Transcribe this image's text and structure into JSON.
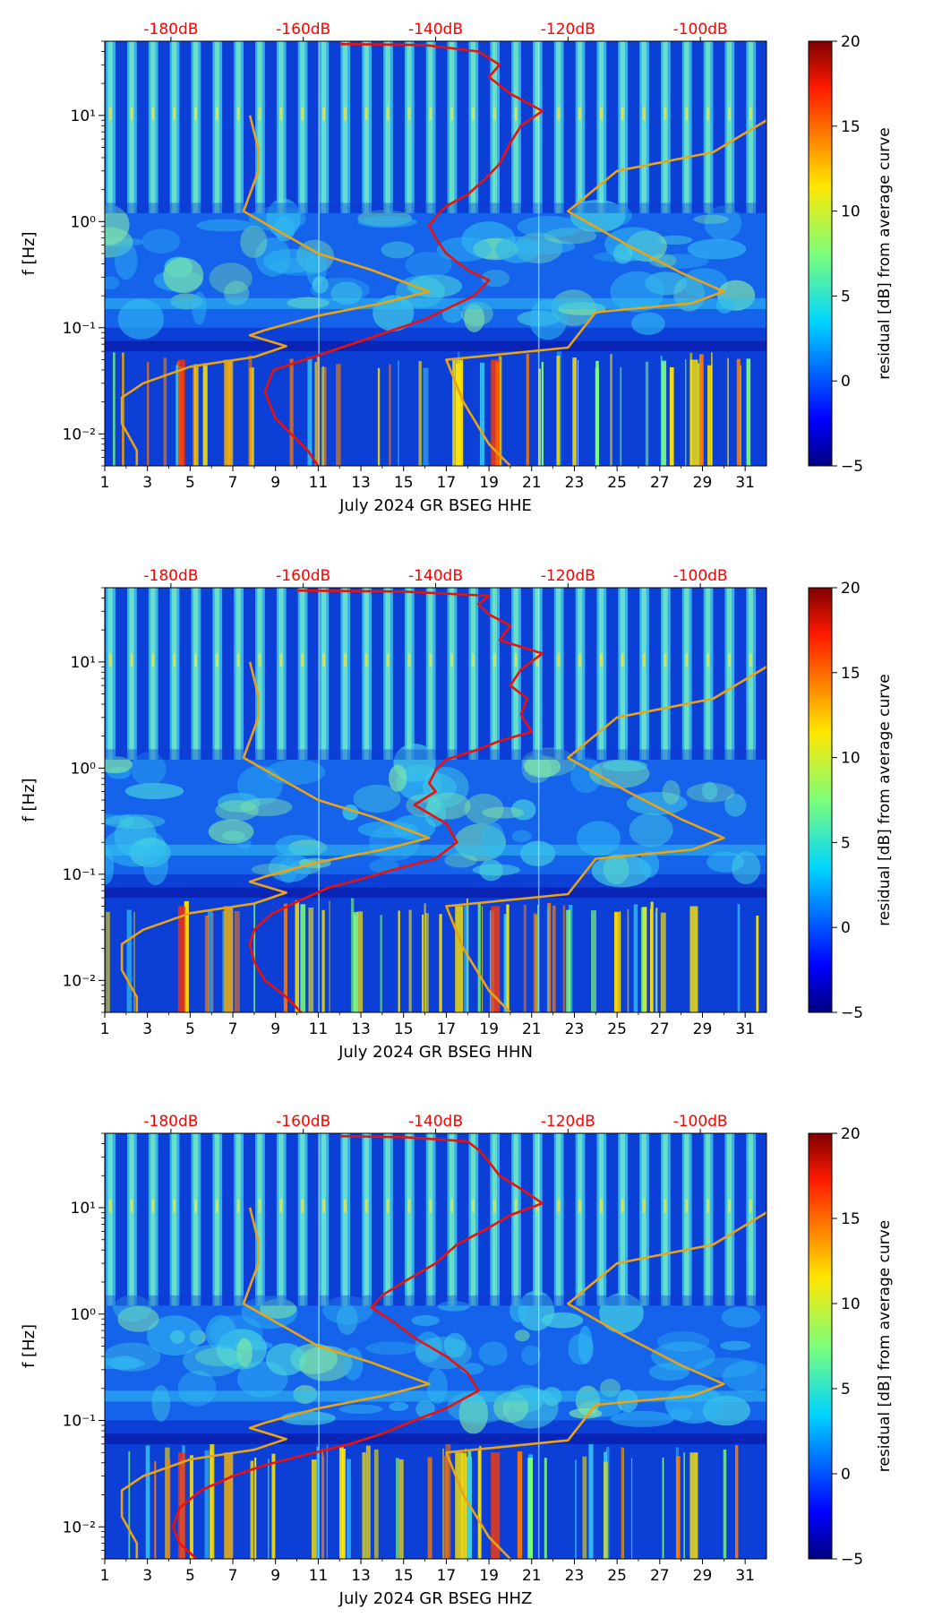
{
  "chart_data": [
    {
      "type": "heatmap",
      "channel": "HHE",
      "xlabel": "July 2024 GR BSEG  HHE",
      "ylabel": "f [Hz]",
      "xlim": [
        1,
        32
      ],
      "ylim": [
        0.005,
        50
      ],
      "yscale": "log",
      "x_ticks": [
        "1",
        "3",
        "5",
        "7",
        "9",
        "11",
        "13",
        "15",
        "17",
        "19",
        "21",
        "23",
        "25",
        "27",
        "29",
        "31"
      ],
      "y_ticks": [
        "10⁻²",
        "10⁻¹",
        "10⁰",
        "10¹"
      ],
      "top_ticks": [
        "-180dB",
        "-160dB",
        "-140dB",
        "-120dB",
        "-100dB"
      ],
      "colorbar": {
        "label": "residual [dB] from average curve",
        "min": -5,
        "max": 20,
        "ticks": [
          "−5",
          "0",
          "5",
          "10",
          "15",
          "20"
        ],
        "colormap": "jet"
      },
      "day_bands": {
        "min_freq_hz": 1.2,
        "note": "daily stripes"
      },
      "series": [
        {
          "color": "#e8a316",
          "points": [
            [
              2.5,
              0.005
            ],
            [
              2.5,
              0.007
            ],
            [
              1.8,
              0.0125
            ],
            [
              1.8,
              0.022
            ],
            [
              2.8,
              0.03
            ],
            [
              5,
              0.043
            ],
            [
              8,
              0.053
            ],
            [
              9.5,
              0.067
            ],
            [
              7.8,
              0.085
            ],
            [
              8.5,
              0.095
            ],
            [
              11,
              0.13
            ],
            [
              14,
              0.17
            ],
            [
              16.2,
              0.22
            ],
            [
              13.5,
              0.35
            ],
            [
              11,
              0.5
            ],
            [
              7.5,
              1.25
            ],
            [
              8.2,
              3
            ],
            [
              8.2,
              4.8
            ],
            [
              7.8,
              10
            ]
          ]
        },
        {
          "color": "#e8a316",
          "points": [
            [
              20,
              0.005
            ],
            [
              19,
              0.008
            ],
            [
              17.8,
              0.02
            ],
            [
              17,
              0.05
            ],
            [
              22.7,
              0.065
            ],
            [
              24,
              0.14
            ],
            [
              28.5,
              0.17
            ],
            [
              30,
              0.22
            ],
            [
              28,
              0.33
            ],
            [
              25.5,
              0.6
            ],
            [
              22.7,
              1.25
            ],
            [
              25,
              3
            ],
            [
              29.5,
              4.5
            ],
            [
              32,
              9
            ]
          ]
        },
        {
          "color": "#e8120d",
          "points": [
            [
              11,
              0.005
            ],
            [
              10.5,
              0.007
            ],
            [
              9,
              0.014
            ],
            [
              8.5,
              0.025
            ],
            [
              8.9,
              0.04
            ],
            [
              11,
              0.055
            ],
            [
              13,
              0.075
            ],
            [
              14.5,
              0.095
            ],
            [
              16,
              0.12
            ],
            [
              17,
              0.15
            ],
            [
              18.3,
              0.2
            ],
            [
              19,
              0.28
            ],
            [
              18,
              0.35
            ],
            [
              17,
              0.5
            ],
            [
              16.5,
              0.7
            ],
            [
              16.2,
              0.92
            ],
            [
              16.5,
              1.1
            ],
            [
              17,
              1.4
            ],
            [
              18,
              1.8
            ],
            [
              18.8,
              2.5
            ],
            [
              19.5,
              3.5
            ],
            [
              20,
              5.5
            ],
            [
              20.5,
              8
            ],
            [
              21.5,
              11
            ],
            [
              20,
              16
            ],
            [
              19,
              23
            ],
            [
              19.5,
              30
            ],
            [
              18.5,
              40
            ],
            [
              16,
              46
            ],
            [
              12,
              47
            ]
          ]
        }
      ]
    },
    {
      "type": "heatmap",
      "channel": "HHN",
      "xlabel": "July 2024 GR BSEG  HHN",
      "ylabel": "f [Hz]",
      "xlim": [
        1,
        32
      ],
      "ylim": [
        0.005,
        50
      ],
      "yscale": "log",
      "x_ticks": [
        "1",
        "3",
        "5",
        "7",
        "9",
        "11",
        "13",
        "15",
        "17",
        "19",
        "21",
        "23",
        "25",
        "27",
        "29",
        "31"
      ],
      "y_ticks": [
        "10⁻²",
        "10⁻¹",
        "10⁰",
        "10¹"
      ],
      "top_ticks": [
        "-180dB",
        "-160dB",
        "-140dB",
        "-120dB",
        "-100dB"
      ],
      "colorbar": {
        "label": "residual [dB] from average curve",
        "min": -5,
        "max": 20,
        "ticks": [
          "−5",
          "0",
          "5",
          "10",
          "15",
          "20"
        ],
        "colormap": "jet"
      },
      "day_bands": {
        "min_freq_hz": 1.2,
        "note": "daily stripes"
      },
      "series": [
        {
          "color": "#e8a316",
          "points": [
            [
              2.5,
              0.005
            ],
            [
              2.5,
              0.007
            ],
            [
              1.8,
              0.0125
            ],
            [
              1.8,
              0.022
            ],
            [
              2.8,
              0.03
            ],
            [
              5,
              0.043
            ],
            [
              8,
              0.053
            ],
            [
              9.5,
              0.067
            ],
            [
              7.8,
              0.085
            ],
            [
              8.5,
              0.095
            ],
            [
              11,
              0.13
            ],
            [
              14,
              0.17
            ],
            [
              16.2,
              0.22
            ],
            [
              13.5,
              0.35
            ],
            [
              11,
              0.5
            ],
            [
              7.5,
              1.25
            ],
            [
              8.2,
              3
            ],
            [
              8.2,
              4.8
            ],
            [
              7.8,
              10
            ]
          ]
        },
        {
          "color": "#e8a316",
          "points": [
            [
              20,
              0.005
            ],
            [
              19,
              0.008
            ],
            [
              17.8,
              0.02
            ],
            [
              17,
              0.05
            ],
            [
              22.7,
              0.065
            ],
            [
              24,
              0.14
            ],
            [
              28.5,
              0.17
            ],
            [
              30,
              0.22
            ],
            [
              28,
              0.33
            ],
            [
              25.5,
              0.6
            ],
            [
              22.7,
              1.25
            ],
            [
              25,
              3
            ],
            [
              29.5,
              4.5
            ],
            [
              32,
              9
            ]
          ]
        },
        {
          "color": "#e8120d",
          "points": [
            [
              10.2,
              0.005
            ],
            [
              9.5,
              0.007
            ],
            [
              8.5,
              0.01
            ],
            [
              8,
              0.015
            ],
            [
              7.8,
              0.022
            ],
            [
              8,
              0.03
            ],
            [
              8.8,
              0.042
            ],
            [
              10,
              0.055
            ],
            [
              11.5,
              0.075
            ],
            [
              13,
              0.09
            ],
            [
              14.5,
              0.11
            ],
            [
              16.5,
              0.14
            ],
            [
              17.5,
              0.2
            ],
            [
              17,
              0.3
            ],
            [
              15.5,
              0.45
            ],
            [
              16.5,
              0.6
            ],
            [
              16.2,
              0.72
            ],
            [
              16.5,
              0.95
            ],
            [
              17,
              1.2
            ],
            [
              18.5,
              1.5
            ],
            [
              19.5,
              1.8
            ],
            [
              21,
              2.2
            ],
            [
              20.5,
              3.2
            ],
            [
              20.8,
              4.5
            ],
            [
              20,
              6
            ],
            [
              20.5,
              8.5
            ],
            [
              21.5,
              12
            ],
            [
              19.5,
              16
            ],
            [
              20,
              22
            ],
            [
              19,
              28
            ],
            [
              18.5,
              35
            ],
            [
              19,
              42
            ],
            [
              15,
              46
            ],
            [
              10,
              47
            ]
          ]
        }
      ]
    },
    {
      "type": "heatmap",
      "channel": "HHZ",
      "xlabel": "July 2024 GR BSEG  HHZ",
      "ylabel": "f [Hz]",
      "xlim": [
        1,
        32
      ],
      "ylim": [
        0.005,
        50
      ],
      "yscale": "log",
      "x_ticks": [
        "1",
        "3",
        "5",
        "7",
        "9",
        "11",
        "13",
        "15",
        "17",
        "19",
        "21",
        "23",
        "25",
        "27",
        "29",
        "31"
      ],
      "y_ticks": [
        "10⁻²",
        "10⁻¹",
        "10⁰",
        "10¹"
      ],
      "top_ticks": [
        "-180dB",
        "-160dB",
        "-140dB",
        "-120dB",
        "-100dB"
      ],
      "colorbar": {
        "label": "residual [dB] from average curve",
        "min": -5,
        "max": 20,
        "ticks": [
          "−5",
          "0",
          "5",
          "10",
          "15",
          "20"
        ],
        "colormap": "jet"
      },
      "day_bands": {
        "min_freq_hz": 1.2,
        "note": "daily stripes"
      },
      "series": [
        {
          "color": "#e8a316",
          "points": [
            [
              2.5,
              0.005
            ],
            [
              2.5,
              0.007
            ],
            [
              1.8,
              0.0125
            ],
            [
              1.8,
              0.022
            ],
            [
              2.8,
              0.03
            ],
            [
              5,
              0.043
            ],
            [
              8,
              0.053
            ],
            [
              9.5,
              0.067
            ],
            [
              7.8,
              0.085
            ],
            [
              8.5,
              0.095
            ],
            [
              11,
              0.13
            ],
            [
              14,
              0.17
            ],
            [
              16.2,
              0.22
            ],
            [
              13.5,
              0.35
            ],
            [
              11,
              0.5
            ],
            [
              7.5,
              1.25
            ],
            [
              8.2,
              3
            ],
            [
              8.2,
              4.8
            ],
            [
              7.8,
              10
            ]
          ]
        },
        {
          "color": "#e8a316",
          "points": [
            [
              20,
              0.005
            ],
            [
              19,
              0.008
            ],
            [
              17.8,
              0.02
            ],
            [
              17,
              0.05
            ],
            [
              22.7,
              0.065
            ],
            [
              24,
              0.14
            ],
            [
              28.5,
              0.17
            ],
            [
              30,
              0.22
            ],
            [
              28,
              0.33
            ],
            [
              25.5,
              0.6
            ],
            [
              22.7,
              1.25
            ],
            [
              25,
              3
            ],
            [
              29.5,
              4.5
            ],
            [
              32,
              9
            ]
          ]
        },
        {
          "color": "#e8120d",
          "points": [
            [
              5.3,
              0.005
            ],
            [
              4.5,
              0.007
            ],
            [
              4.2,
              0.01
            ],
            [
              4.5,
              0.015
            ],
            [
              5.5,
              0.022
            ],
            [
              7,
              0.03
            ],
            [
              8.5,
              0.038
            ],
            [
              10.5,
              0.048
            ],
            [
              12.5,
              0.06
            ],
            [
              14,
              0.075
            ],
            [
              15.5,
              0.1
            ],
            [
              17,
              0.13
            ],
            [
              18.5,
              0.19
            ],
            [
              18,
              0.28
            ],
            [
              17,
              0.4
            ],
            [
              15.5,
              0.6
            ],
            [
              14.5,
              0.85
            ],
            [
              13.5,
              1.15
            ],
            [
              14,
              1.5
            ],
            [
              15,
              2
            ],
            [
              16.5,
              3
            ],
            [
              17.5,
              4.5
            ],
            [
              19,
              6.5
            ],
            [
              20,
              8.5
            ],
            [
              21.5,
              11
            ],
            [
              20.5,
              15
            ],
            [
              19.5,
              20
            ],
            [
              19,
              27
            ],
            [
              18.5,
              35
            ],
            [
              18,
              42
            ],
            [
              15,
              46
            ],
            [
              12,
              47
            ]
          ]
        }
      ]
    }
  ]
}
